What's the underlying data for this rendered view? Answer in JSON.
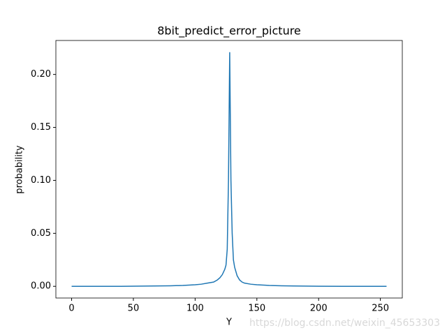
{
  "chart_data": {
    "type": "line",
    "title": "8bit_predict_error_picture",
    "x_label": "Y",
    "y_label": "probability",
    "watermark": "https://blog.csdn.net/weixin_45653303",
    "x": [
      0,
      20,
      40,
      60,
      80,
      90,
      100,
      105,
      110,
      115,
      118,
      120,
      122,
      124,
      125,
      126,
      127,
      128,
      129,
      130,
      131,
      132,
      134,
      136,
      138,
      140,
      145,
      150,
      160,
      170,
      180,
      200,
      220,
      240,
      255
    ],
    "series": [
      {
        "name": "probability",
        "color": "#1f77b4",
        "values": [
          0,
          0,
          0,
          0.0002,
          0.0005,
          0.0008,
          0.0015,
          0.002,
          0.003,
          0.004,
          0.006,
          0.008,
          0.011,
          0.016,
          0.02,
          0.035,
          0.1,
          0.221,
          0.1,
          0.05,
          0.025,
          0.018,
          0.01,
          0.006,
          0.004,
          0.003,
          0.002,
          0.0015,
          0.0008,
          0.0005,
          0.0003,
          0.0001,
          0,
          0,
          0
        ]
      }
    ],
    "xlim": [
      -12.75,
      267.75
    ],
    "ylim": [
      -0.01105,
      0.23205
    ],
    "xticks": [
      0,
      50,
      100,
      150,
      200,
      250
    ],
    "yticks": [
      {
        "value": 0,
        "label": "0.00"
      },
      {
        "value": 0.05,
        "label": "0.05"
      },
      {
        "value": 0.1,
        "label": "0.10"
      },
      {
        "value": 0.15,
        "label": "0.15"
      },
      {
        "value": 0.2,
        "label": "0.20"
      }
    ]
  }
}
